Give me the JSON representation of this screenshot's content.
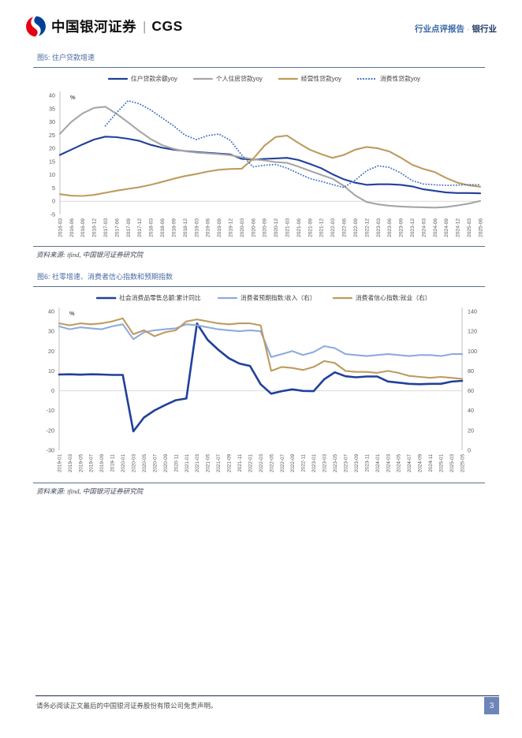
{
  "header": {
    "logo_text": "中国银河证券",
    "logo_divider": "|",
    "logo_suffix": "CGS",
    "report_type": "行业点评报告",
    "separator": "·",
    "industry": "银行业"
  },
  "figure5": {
    "title": "图5: 住户贷款增速",
    "source": "资料来源: ifind, 中国银河证券研究院"
  },
  "figure6": {
    "title": "图6: 社零增速、消费者信心指数和预期指数",
    "source": "资料来源: ifind, 中国银河证券研究院"
  },
  "footer": {
    "disclaimer": "请务必阅读正文最后的中国银河证券股份有限公司免责声明。",
    "page_number": "3"
  },
  "colors": {
    "brand_red": "#e60012",
    "brand_blue": "#004098",
    "title_blue": "#4a69a5",
    "rule_blue": "#5a7191",
    "axis_gray": "#bfbfbf",
    "grid_gray": "#d9d9d9",
    "tick_text": "#595959",
    "page_box": "#6d85b8"
  },
  "chart_data": [
    {
      "type": "line",
      "title": "住户贷款增速",
      "unit": "%",
      "grid": "zero-line-only",
      "legend_position": "top",
      "ylim_left": [
        -5,
        40
      ],
      "yticks_left": [
        40,
        35,
        30,
        25,
        20,
        15,
        10,
        5,
        0,
        -5
      ],
      "categories": [
        "2016-03",
        "2016-06",
        "2016-09",
        "2016-12",
        "2017-03",
        "2017-06",
        "2017-09",
        "2017-12",
        "2018-03",
        "2018-06",
        "2018-09",
        "2018-12",
        "2019-03",
        "2019-06",
        "2019-09",
        "2019-12",
        "2020-03",
        "2020-06",
        "2020-09",
        "2020-12",
        "2021-03",
        "2021-06",
        "2021-09",
        "2021-12",
        "2022-03",
        "2022-06",
        "2022-09",
        "2022-12",
        "2023-03",
        "2023-06",
        "2023-09",
        "2023-12",
        "2024-03",
        "2024-06",
        "2024-09",
        "2024-12",
        "2025-03",
        "2025-06"
      ],
      "series": [
        {
          "name": "住户贷款余额yoy",
          "color": "#20409a",
          "style": "solid",
          "width": 2.1,
          "axis": "left",
          "values": [
            17.5,
            19.5,
            21.5,
            23.3,
            24.4,
            24.2,
            23.6,
            22.8,
            21.3,
            20.2,
            19.5,
            19.0,
            18.6,
            18.3,
            18.0,
            17.7,
            16.0,
            15.7,
            16.0,
            16.2,
            16.4,
            15.6,
            14.1,
            12.5,
            10.2,
            8.3,
            7.0,
            6.2,
            6.4,
            6.4,
            6.2,
            5.6,
            4.5,
            3.9,
            3.3,
            3.1,
            3.1,
            3.0
          ]
        },
        {
          "name": "个人住房贷款yoy",
          "color": "#a6a6a6",
          "style": "solid",
          "width": 2.1,
          "axis": "left",
          "values": [
            25.5,
            30.0,
            33.2,
            35.3,
            35.7,
            33.0,
            29.8,
            26.5,
            23.5,
            21.2,
            19.8,
            18.9,
            18.4,
            18.1,
            17.8,
            17.4,
            16.6,
            15.9,
            15.4,
            14.8,
            14.5,
            13.1,
            11.5,
            10.0,
            8.5,
            5.8,
            2.2,
            -0.3,
            -1.2,
            -1.7,
            -2.0,
            -2.2,
            -2.3,
            -2.4,
            -2.2,
            -1.6,
            -0.9,
            0.1
          ]
        },
        {
          "name": "经营性贷款yoy",
          "color": "#bd9b5f",
          "style": "solid",
          "width": 2.1,
          "axis": "left",
          "values": [
            2.7,
            2.1,
            2.0,
            2.4,
            3.2,
            4.0,
            4.7,
            5.3,
            6.2,
            7.3,
            8.5,
            9.5,
            10.3,
            11.2,
            11.9,
            12.2,
            12.3,
            16.0,
            21.0,
            24.3,
            24.8,
            22.0,
            19.5,
            17.8,
            16.4,
            17.5,
            19.5,
            20.5,
            20.0,
            18.8,
            16.5,
            13.8,
            12.2,
            11.0,
            8.8,
            7.0,
            6.0,
            5.5
          ]
        },
        {
          "name": "消费性贷款yoy",
          "color": "#4472c4",
          "style": "dotted",
          "width": 1.9,
          "axis": "left",
          "values": [
            null,
            null,
            null,
            null,
            28.5,
            33.5,
            38.0,
            36.8,
            34.5,
            31.5,
            28.5,
            25.0,
            23.3,
            24.8,
            25.4,
            23.0,
            17.5,
            13.0,
            13.6,
            13.9,
            12.5,
            10.5,
            8.6,
            7.5,
            6.3,
            5.2,
            8.0,
            11.5,
            13.4,
            12.8,
            10.7,
            7.8,
            6.5,
            6.2,
            6.0,
            6.1,
            6.3,
            6.2
          ]
        }
      ]
    },
    {
      "type": "line",
      "title": "社零增速、消费者信心指数和预期指数",
      "unit": "%",
      "grid": "zero-line-only",
      "legend_position": "top",
      "ylim_left": [
        -30,
        40
      ],
      "yticks_left": [
        40,
        30,
        20,
        10,
        0,
        -10,
        -20,
        -30
      ],
      "ylim_right": [
        0,
        140
      ],
      "yticks_right": [
        140,
        120,
        100,
        80,
        60,
        40,
        20,
        0
      ],
      "categories": [
        "2019-01",
        "2019-03",
        "2019-05",
        "2019-07",
        "2019-09",
        "2019-11",
        "2020-01",
        "2020-03",
        "2020-05",
        "2020-07",
        "2020-09",
        "2020-11",
        "2021-01",
        "2021-03",
        "2021-05",
        "2021-07",
        "2021-09",
        "2021-11",
        "2022-01",
        "2022-03",
        "2022-05",
        "2022-07",
        "2022-09",
        "2022-11",
        "2023-01",
        "2023-03",
        "2023-05",
        "2023-07",
        "2023-09",
        "2023-11",
        "2024-01",
        "2024-03",
        "2024-05",
        "2024-07",
        "2024-09",
        "2024-11",
        "2025-01",
        "2025-03",
        "2025-05"
      ],
      "series": [
        {
          "name": "社会消费品零售总额:累计同比",
          "color": "#20409a",
          "style": "solid",
          "width": 2.6,
          "axis": "left",
          "values": [
            8.2,
            8.3,
            8.1,
            8.3,
            8.2,
            8.0,
            8.0,
            -20.5,
            -13.5,
            -9.9,
            -7.2,
            -4.8,
            -3.9,
            33.9,
            25.7,
            20.7,
            16.4,
            13.7,
            12.5,
            3.3,
            -1.5,
            -0.2,
            0.7,
            -0.1,
            -0.2,
            5.8,
            9.3,
            7.3,
            6.8,
            7.2,
            7.2,
            4.7,
            4.1,
            3.5,
            3.3,
            3.5,
            3.5,
            4.6,
            5.0
          ]
        },
        {
          "name": "消费者预期指数:收入（右）",
          "color": "#8faadc",
          "style": "solid",
          "width": 2.1,
          "axis": "right",
          "values": [
            125,
            122,
            124,
            123,
            122,
            125,
            127,
            112,
            119,
            121,
            122,
            123,
            127,
            126,
            124,
            122,
            121,
            120,
            121,
            120,
            94,
            97,
            100,
            96,
            99,
            105,
            103,
            97,
            96,
            95,
            96,
            97,
            96,
            95,
            96,
            96,
            95,
            97,
            97
          ]
        },
        {
          "name": "消费者信心指数:就业（右）",
          "color": "#bd9b5f",
          "style": "solid",
          "width": 2.1,
          "axis": "right",
          "values": [
            128,
            126,
            128,
            127,
            128,
            130,
            133,
            117,
            121,
            115,
            119,
            121,
            130,
            132,
            130,
            128,
            127,
            128,
            128,
            126,
            80,
            84,
            83,
            81,
            84,
            90,
            88,
            80,
            79,
            79,
            78,
            80,
            78,
            75,
            74,
            73,
            74,
            73,
            72
          ]
        }
      ]
    }
  ]
}
